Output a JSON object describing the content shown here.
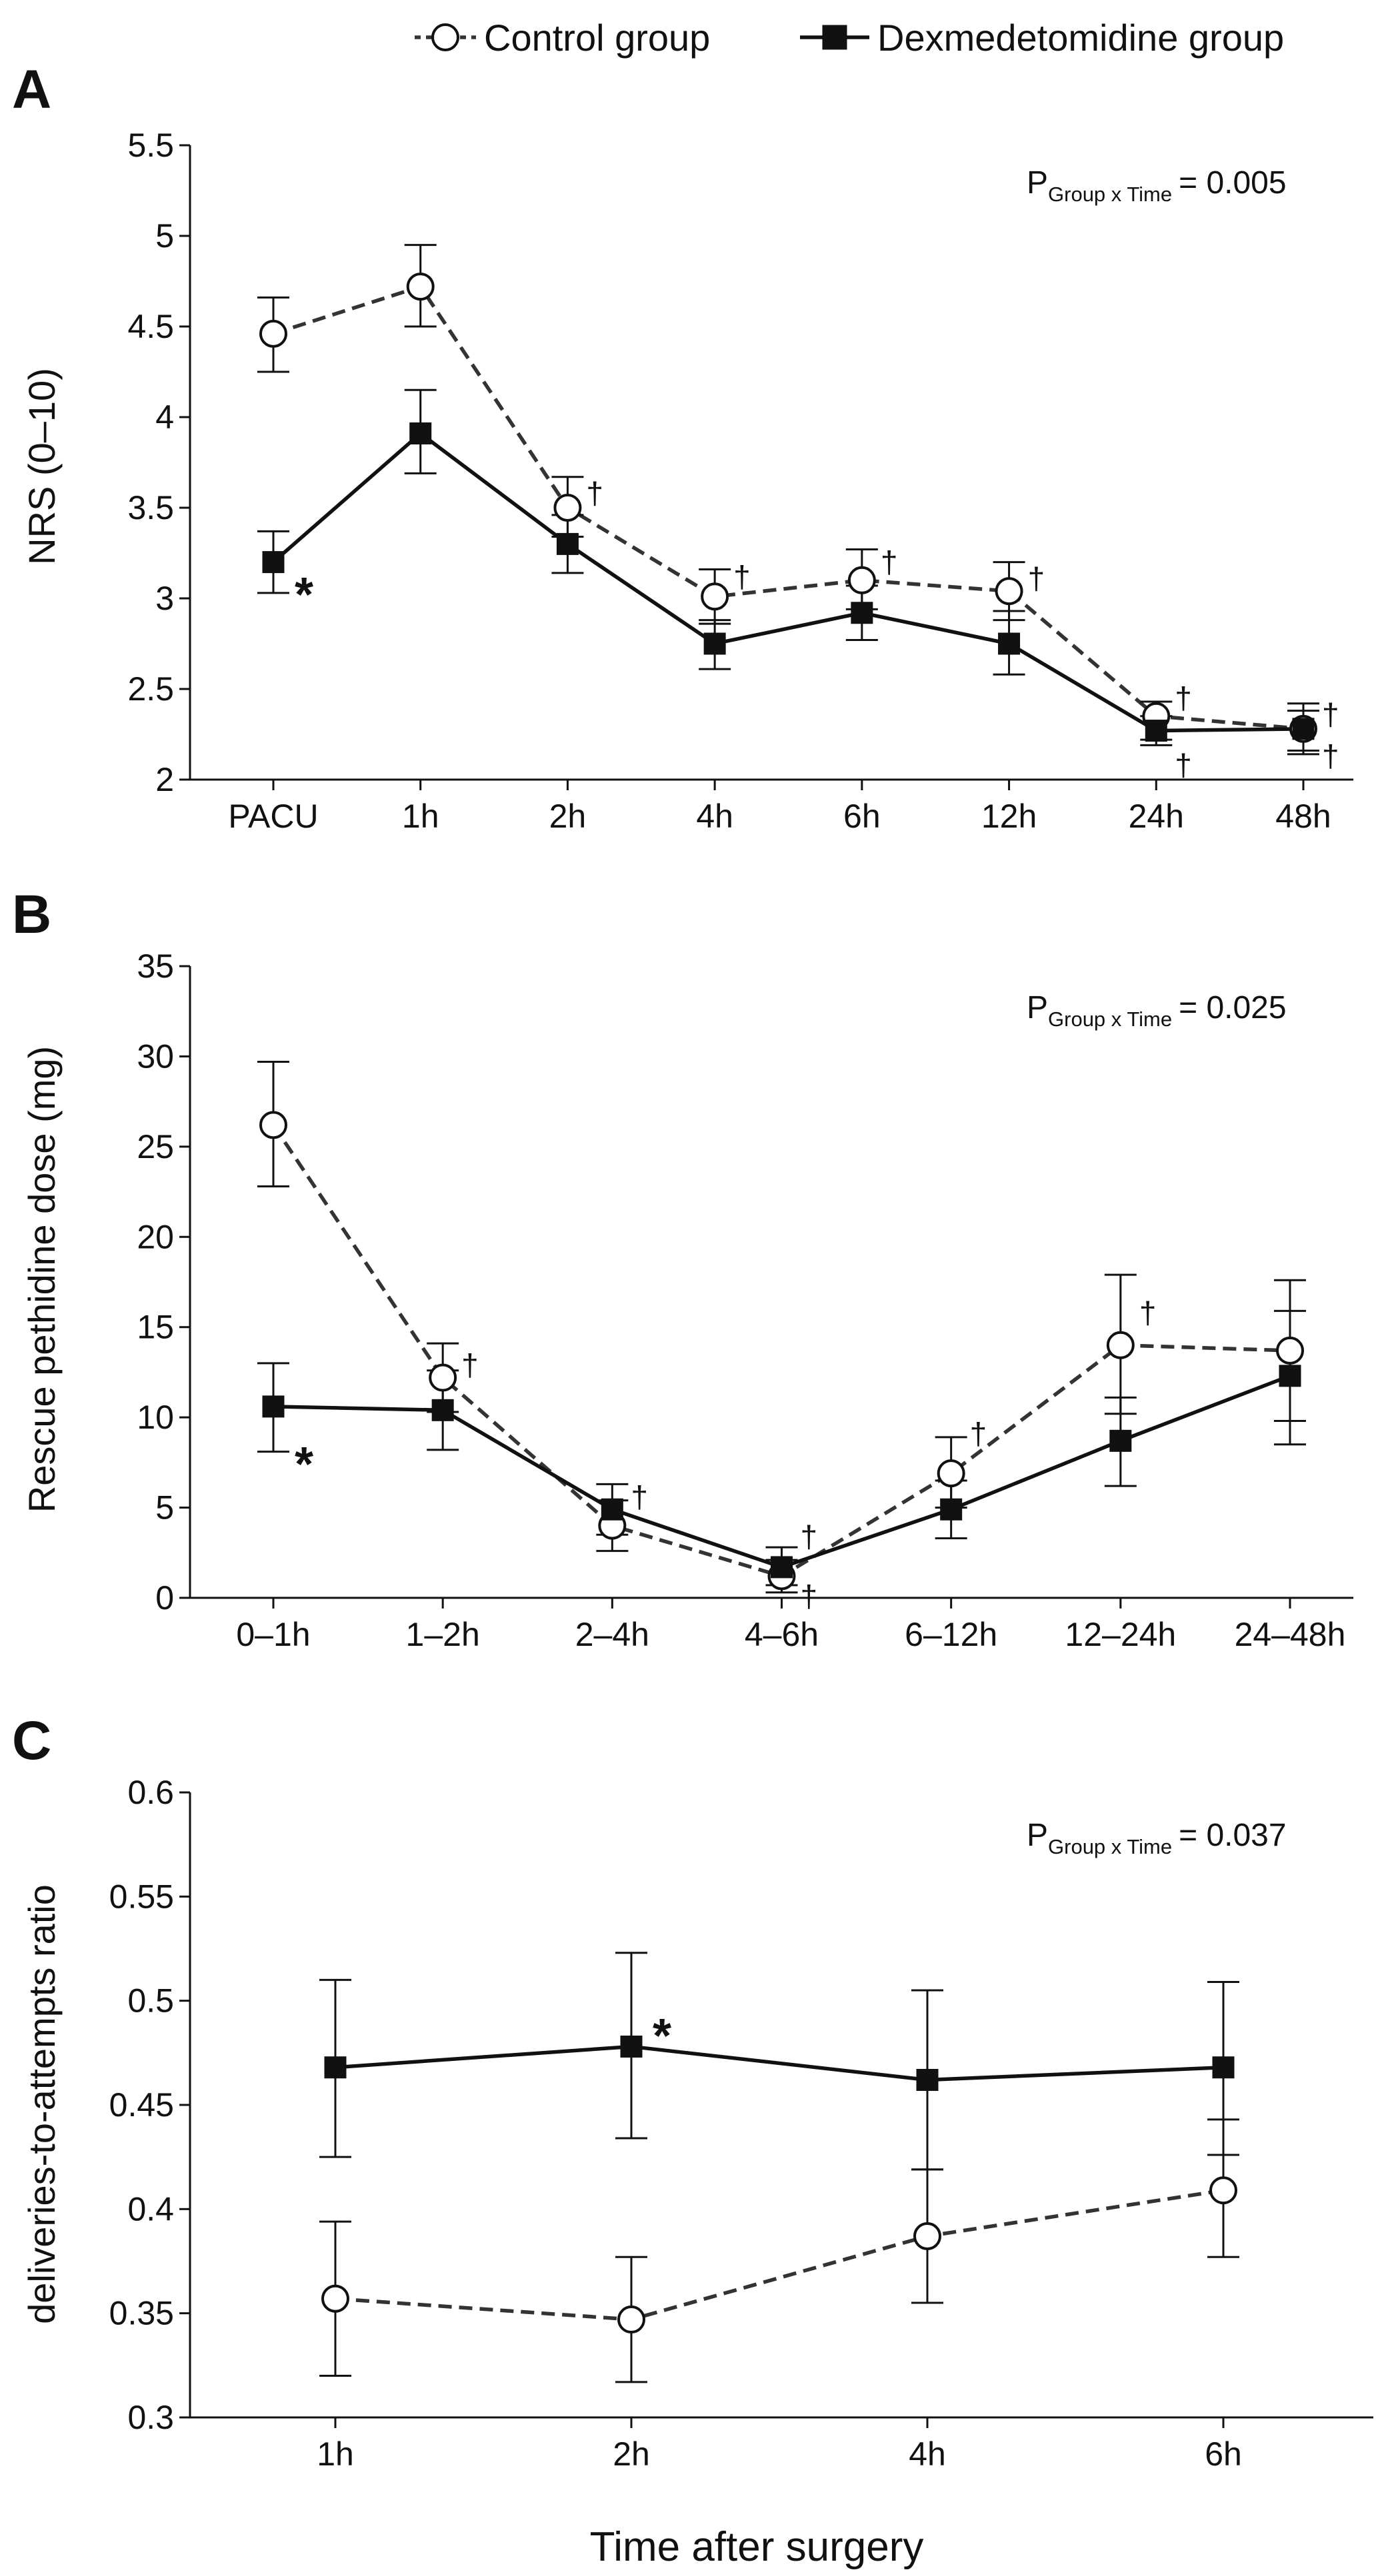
{
  "legend": {
    "control": "Control group",
    "dex": "Dexmedetomidine group"
  },
  "shared_xlabel": "Time after surgery",
  "p_prefix": "P",
  "p_sub": "Group x Time",
  "chart_data": [
    {
      "type": "line",
      "panel": "A",
      "ylabel": "NRS (0–10)",
      "ylim": [
        2,
        5.5
      ],
      "yticks": [
        2,
        2.5,
        3,
        3.5,
        4,
        4.5,
        5,
        5.5
      ],
      "ytick_labels": [
        "2",
        "2.5",
        "3",
        "3.5",
        "4",
        "4.5",
        "5",
        "5.5"
      ],
      "categories": [
        "PACU",
        "1h",
        "2h",
        "4h",
        "6h",
        "12h",
        "24h",
        "48h"
      ],
      "p_value": "= 0.005",
      "series": [
        {
          "name": "Control group",
          "values": [
            4.46,
            4.72,
            3.5,
            3.01,
            3.1,
            3.04,
            2.35,
            2.28
          ],
          "err_low": [
            4.25,
            4.5,
            3.34,
            2.86,
            2.94,
            2.88,
            2.22,
            2.14
          ],
          "err_high": [
            4.66,
            4.95,
            3.67,
            3.16,
            3.27,
            3.2,
            2.43,
            2.42
          ]
        },
        {
          "name": "Dexmedetomidine group",
          "values": [
            3.2,
            3.91,
            3.3,
            2.75,
            2.92,
            2.75,
            2.27,
            2.28
          ],
          "err_low": [
            3.03,
            3.69,
            3.14,
            2.61,
            2.77,
            2.58,
            2.19,
            2.16
          ],
          "err_high": [
            3.37,
            4.15,
            3.46,
            2.88,
            3.07,
            2.93,
            2.35,
            2.38
          ]
        }
      ],
      "annotations": [
        {
          "text": "*",
          "cat": 0,
          "y": 3.1,
          "kind": "star"
        },
        {
          "text": "†",
          "cat": 2,
          "y": 3.58,
          "kind": "dagger"
        },
        {
          "text": "†",
          "cat": 3,
          "y": 3.12,
          "kind": "dagger"
        },
        {
          "text": "†",
          "cat": 4,
          "y": 3.2,
          "kind": "dagger"
        },
        {
          "text": "†",
          "cat": 5,
          "y": 3.11,
          "kind": "dagger"
        },
        {
          "text": "†",
          "cat": 6,
          "y": 2.45,
          "kind": "dagger"
        },
        {
          "text": "†",
          "cat": 6,
          "y": 2.08,
          "kind": "dagger"
        },
        {
          "text": "†",
          "cat": 7,
          "y": 2.36,
          "kind": "dagger"
        },
        {
          "text": "†",
          "cat": 7,
          "y": 2.13,
          "kind": "dagger"
        }
      ]
    },
    {
      "type": "line",
      "panel": "B",
      "ylabel": "Rescue pethidine dose (mg)",
      "ylim": [
        0,
        35
      ],
      "yticks": [
        0,
        5,
        10,
        15,
        20,
        25,
        30,
        35
      ],
      "ytick_labels": [
        "0",
        "5",
        "10",
        "15",
        "20",
        "25",
        "30",
        "35"
      ],
      "categories": [
        "0–1h",
        "1–2h",
        "2–4h",
        "4–6h",
        "6–12h",
        "12–24h",
        "24–48h"
      ],
      "p_value": "= 0.025",
      "series": [
        {
          "name": "Control group",
          "values": [
            26.2,
            12.2,
            4.0,
            1.2,
            6.9,
            14.0,
            13.7
          ],
          "err_low": [
            22.8,
            10.3,
            2.6,
            0.3,
            5.0,
            10.2,
            9.8
          ],
          "err_high": [
            29.7,
            14.1,
            5.4,
            2.1,
            8.9,
            17.9,
            17.6
          ]
        },
        {
          "name": "Dexmedetomidine group",
          "values": [
            10.6,
            10.4,
            4.9,
            1.7,
            4.9,
            8.7,
            12.3
          ],
          "err_low": [
            8.1,
            8.2,
            3.5,
            0.7,
            3.3,
            6.2,
            8.5
          ],
          "err_high": [
            13.0,
            12.6,
            6.3,
            2.8,
            6.5,
            11.1,
            15.9
          ]
        }
      ],
      "annotations": [
        {
          "text": "*",
          "cat": 0,
          "y": 8.2,
          "kind": "star"
        },
        {
          "text": "†",
          "cat": 1,
          "y": 12.9,
          "kind": "dagger"
        },
        {
          "text": "†",
          "cat": 2,
          "y": 5.6,
          "kind": "dagger"
        },
        {
          "text": "†",
          "cat": 3,
          "y": 3.4,
          "kind": "dagger"
        },
        {
          "text": "†",
          "cat": 3,
          "y": 0.1,
          "kind": "dagger"
        },
        {
          "text": "†",
          "cat": 4,
          "y": 9.1,
          "kind": "dagger"
        },
        {
          "text": "†",
          "cat": 5,
          "y": 15.8,
          "kind": "dagger"
        }
      ]
    },
    {
      "type": "line",
      "panel": "C",
      "ylabel": "deliveries-to-attempts ratio",
      "ylim": [
        0.3,
        0.6
      ],
      "yticks": [
        0.3,
        0.35,
        0.4,
        0.45,
        0.5,
        0.55,
        0.6
      ],
      "ytick_labels": [
        "0.3",
        "0.35",
        "0.4",
        "0.45",
        "0.5",
        "0.55",
        "0.6"
      ],
      "categories": [
        "1h",
        "2h",
        "4h",
        "6h"
      ],
      "p_value": "= 0.037",
      "series": [
        {
          "name": "Control group",
          "values": [
            0.357,
            0.347,
            0.387,
            0.409
          ],
          "err_low": [
            0.32,
            0.317,
            0.355,
            0.377
          ],
          "err_high": [
            0.394,
            0.377,
            0.419,
            0.443
          ]
        },
        {
          "name": "Dexmedetomidine group",
          "values": [
            0.468,
            0.478,
            0.462,
            0.468
          ],
          "err_low": [
            0.425,
            0.434,
            0.419,
            0.426
          ],
          "err_high": [
            0.51,
            0.523,
            0.505,
            0.509
          ]
        }
      ],
      "annotations": [
        {
          "text": "*",
          "cat": 1,
          "y": 0.49,
          "kind": "star"
        }
      ]
    }
  ]
}
